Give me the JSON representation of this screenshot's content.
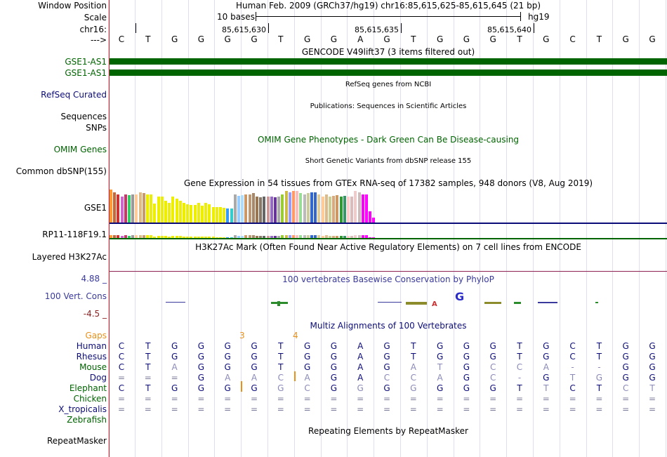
{
  "header": {
    "window_position_label": "Window Position",
    "scale_label": "Scale",
    "chrom_label": "chr16:",
    "arrow_label": "--->",
    "position_text": "Human Feb. 2009 (GRCh37/hg19)   chr16:85,615,625-85,615,645 (21 bp)",
    "scale_text": "10 bases",
    "assembly": "hg19",
    "coords": [
      "85,615,630",
      "85,615,635",
      "85,615,640"
    ]
  },
  "sequence": [
    "C",
    "T",
    "G",
    "G",
    "G",
    "G",
    "T",
    "G",
    "G",
    "A",
    "G",
    "T",
    "G",
    "G",
    "G",
    "T",
    "G",
    "C",
    "T",
    "G",
    "G"
  ],
  "tracks": {
    "gencode": {
      "title": "GENCODE V49lift37 (3 items filtered out)",
      "items": [
        "GSE1-AS1",
        "GSE1-AS1"
      ],
      "color": "#006400"
    },
    "refseq": {
      "label": "RefSeq Curated",
      "title": "RefSeq genes from NCBI"
    },
    "publications": {
      "label": "Sequences",
      "title": "Publications: Sequences in Scientific Articles"
    },
    "snps": {
      "label": "SNPs"
    },
    "omim": {
      "label": "OMIM Genes",
      "title": "OMIM Gene Phenotypes - Dark Green Can Be Disease-causing"
    },
    "dbsnp": {
      "label": "Common dbSNP(155)",
      "title": "Short Genetic Variants from dbSNP release 155"
    },
    "gtex": {
      "title": "Gene Expression in 54 tissues from GTEx RNA-seq of 17382 samples, 948 donors (V8, Aug 2019)",
      "genes": [
        "GSE1",
        "RP11-118F19.1"
      ]
    },
    "h3k27ac": {
      "label": "Layered H3K27Ac",
      "title": "H3K27Ac Mark (Often Found Near Active Regulatory Elements) on 7 cell lines from ENCODE"
    },
    "phylop": {
      "label": "100 Vert. Cons",
      "max": "4.88 _",
      "min": "-4.5 _",
      "title": "100 vertebrates Basewise Conservation by PhyloP"
    },
    "multiz": {
      "title": "Multiz Alignments of 100 Vertebrates",
      "gaps_label": "Gaps",
      "gap_counts": [
        "3",
        "4"
      ]
    },
    "repeatmasker": {
      "label": "RepeatMasker",
      "title": "Repeating Elements by RepeatMasker"
    }
  },
  "species": [
    {
      "name": "Human",
      "bases": [
        "C",
        "T",
        "G",
        "G",
        "G",
        "G",
        "T",
        "G",
        "G",
        "A",
        "G",
        "T",
        "G",
        "G",
        "G",
        "T",
        "G",
        "C",
        "T",
        "G",
        "G"
      ]
    },
    {
      "name": "Rhesus",
      "bases": [
        "C",
        "T",
        "G",
        "G",
        "G",
        "G",
        "T",
        "G",
        "G",
        "A",
        "G",
        "T",
        "G",
        "G",
        "G",
        "T",
        "G",
        "C",
        "T",
        "G",
        "G"
      ]
    },
    {
      "name": "Mouse",
      "bases": [
        "C",
        "T",
        "A",
        "G",
        "G",
        "G",
        "T",
        "G",
        "G",
        "A",
        "G",
        "A",
        "T",
        "G",
        "C",
        "C",
        "A",
        "-",
        "-",
        "G",
        "G"
      ]
    },
    {
      "name": "Dog",
      "bases": [
        "=",
        "=",
        "=",
        "G",
        "A",
        "A",
        "C",
        "A",
        "G",
        "A",
        "C",
        "C",
        "A",
        "G",
        "C",
        "-",
        "G",
        "T",
        "G",
        "G",
        "G"
      ]
    },
    {
      "name": "Elephant",
      "bases": [
        "C",
        "T",
        "G",
        "G",
        "G",
        "G",
        "G",
        "C",
        "G",
        "G",
        "G",
        "G",
        "G",
        "G",
        "G",
        "T",
        "T",
        "C",
        "T",
        "C",
        "T"
      ]
    },
    {
      "name": "Chicken",
      "bases": [
        "=",
        "=",
        "=",
        "=",
        "=",
        "=",
        "=",
        "=",
        "=",
        "=",
        "=",
        "=",
        "=",
        "=",
        "=",
        "=",
        "=",
        "=",
        "=",
        "=",
        "="
      ]
    },
    {
      "name": "X_tropicalis",
      "bases": [
        "=",
        "=",
        "=",
        "=",
        "=",
        "=",
        "=",
        "=",
        "=",
        "=",
        "=",
        "=",
        "=",
        "=",
        "=",
        "=",
        "=",
        "=",
        "=",
        "=",
        "="
      ]
    },
    {
      "name": "Zebrafish",
      "bases": []
    }
  ],
  "gtex_values": [
    75,
    70,
    65,
    60,
    65,
    63,
    65,
    65,
    70,
    68,
    65,
    65,
    43,
    60,
    60,
    50,
    45,
    60,
    55,
    50,
    45,
    42,
    40,
    40,
    45,
    38,
    45,
    42,
    36,
    35,
    35,
    34,
    33,
    33,
    65,
    62,
    63,
    65,
    65,
    68,
    60,
    58,
    60,
    60,
    60,
    58,
    60,
    65,
    72,
    70,
    72,
    73,
    68,
    65,
    67,
    70,
    70,
    65,
    60,
    65,
    60,
    62,
    63,
    60,
    62,
    60,
    60,
    72,
    70,
    65,
    65,
    25,
    12
  ],
  "gtex_colors": [
    "#ff9933",
    "#cc6633",
    "#cc3333",
    "#cc66cc",
    "#cc3366",
    "#33cc66",
    "#999999",
    "#ffcc99",
    "#ddbb88",
    "#cc9966",
    "#eeee00",
    "#eeee00",
    "#eeee00",
    "#eeee00",
    "#eeee00",
    "#eeee00",
    "#eeee00",
    "#eeee00",
    "#eeee00",
    "#eeee00",
    "#eeee00",
    "#eeee00",
    "#eeee00",
    "#eeee00",
    "#eeee00",
    "#eeee00",
    "#eeee00",
    "#eeee00",
    "#eeee00",
    "#eeee00",
    "#eeee00",
    "#eeee00",
    "#3399ff",
    "#33cccc",
    "#aaaaaa",
    "#99ccff",
    "#aaddff",
    "#cc9966",
    "#bb9977",
    "#aa8866",
    "#997755",
    "#887766",
    "#666666",
    "#cc9999",
    "#9966cc",
    "#663399",
    "#aaaaaa",
    "#99cc33",
    "#ccbb44",
    "#9999ff",
    "#ff9966",
    "#ffbbbb",
    "#99dd99",
    "#bbbbbb",
    "#cccc99",
    "#3366cc",
    "#3366cc",
    "#ddcc99",
    "#ffcc99",
    "#ddbb88",
    "#cccc99",
    "#ddaa77",
    "#cc9966",
    "#339933",
    "#339966",
    "#ffcccc",
    "#ddbbbb",
    "#eecccc",
    "#ccbbbb",
    "#ff00ff",
    "#ff00ff",
    "#ff00ff",
    "#ff00ff"
  ]
}
